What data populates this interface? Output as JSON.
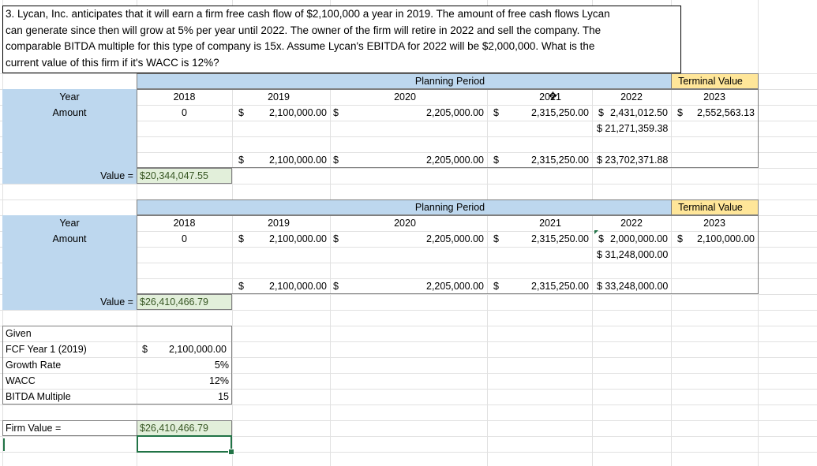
{
  "problem": {
    "lines": [
      "3. Lycan, Inc. anticipates that it will earn a firm free cash flow of $2,100,000 a year in 2019. The amount of free cash flows Lycan",
      "can generate since then will grow at 5% per year until 2022. The owner of the firm will retire in 2022 and sell the company. The",
      "comparable BITDA multiple for this type of company is 15x. Assume Lycan's EBITDA for 2022 will be $2,000,000. What is the",
      "current value of this firm if it's WACC is 12%?"
    ]
  },
  "table1": {
    "planning_header": "Planning Period",
    "terminal_header": "Terminal Value",
    "year_label": "Year",
    "amount_label": "Amount",
    "years": [
      "2018",
      "2019",
      "2020",
      "2021",
      "2022",
      "2023"
    ],
    "amounts": [
      "0",
      "2,100,000.00",
      "2,205,000.00",
      "2,315,250.00",
      "2,431,012.50",
      "2,552,563.13"
    ],
    "dollar": "$",
    "tv_2022": "$ 21,271,359.38",
    "cf_2019": "2,100,000.00",
    "cf_2020": "2,205,000.00",
    "cf_2021": "2,315,250.00",
    "cf_2022": "$ 23,702,371.88",
    "value_label": "Value =",
    "value": "$20,344,047.55"
  },
  "table2": {
    "planning_header": "Planning Period",
    "terminal_header": "Terminal Value",
    "year_label": "Year",
    "amount_label": "Amount",
    "years": [
      "2018",
      "2019",
      "2020",
      "2021",
      "2022",
      "2023"
    ],
    "amounts": [
      "0",
      "2,100,000.00",
      "2,205,000.00",
      "2,315,250.00",
      "2,000,000.00",
      "2,100,000.00"
    ],
    "dollar": "$",
    "tv_2022": "$ 31,248,000.00",
    "cf_2019": "2,100,000.00",
    "cf_2020": "2,205,000.00",
    "cf_2021": "2,315,250.00",
    "cf_2022": "$ 33,248,000.00",
    "value_label": "Value =",
    "value": "$26,410,466.79"
  },
  "given": {
    "title": "Given",
    "fcf_label": "FCF Year 1 (2019)",
    "fcf_dollar": "$",
    "fcf_value": "2,100,000.00",
    "growth_label": "Growth Rate",
    "growth_value": "5%",
    "wacc_label": "WACC",
    "wacc_value": "12%",
    "multiple_label": "BITDA Multiple",
    "multiple_value": "15",
    "firm_value_label": "Firm Value =",
    "firm_value": "$26,410,466.79"
  },
  "colors": {
    "blue_fill": "#bdd7ee",
    "green_fill": "#e2efda",
    "gold_fill": "#ffe699",
    "selection": "#217346"
  }
}
